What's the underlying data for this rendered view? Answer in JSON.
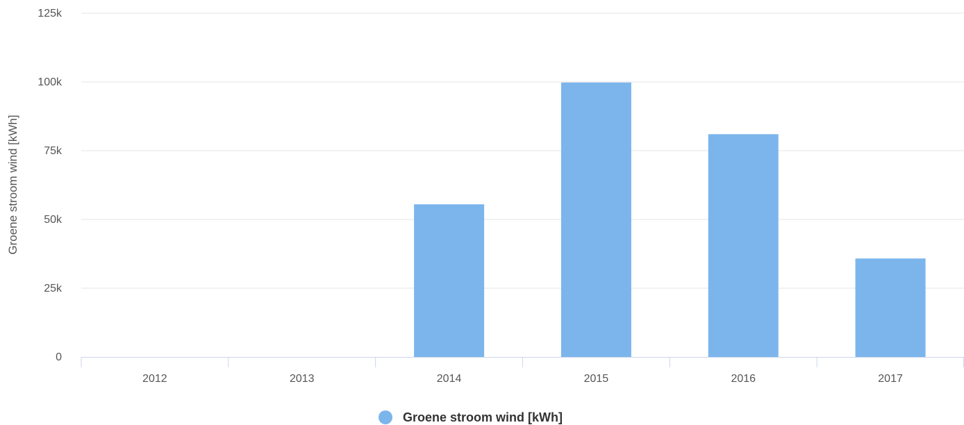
{
  "chart_data": {
    "type": "bar",
    "title": "",
    "xlabel": "",
    "ylabel": "Groene stroom wind [kWh]",
    "categories": [
      "2012",
      "2013",
      "2014",
      "2015",
      "2016",
      "2017"
    ],
    "series": [
      {
        "name": "Groene stroom wind [kWh]",
        "values": [
          0,
          0,
          55500,
          99800,
          81000,
          35800
        ],
        "color": "#7cb5ec"
      }
    ],
    "ylim": [
      0,
      125000
    ],
    "yticks": [
      0,
      25000,
      50000,
      75000,
      100000,
      125000
    ],
    "ytick_labels": [
      "0",
      "25k",
      "50k",
      "75k",
      "100k",
      "125k"
    ],
    "grid": true,
    "legend_position": "bottom-center"
  }
}
